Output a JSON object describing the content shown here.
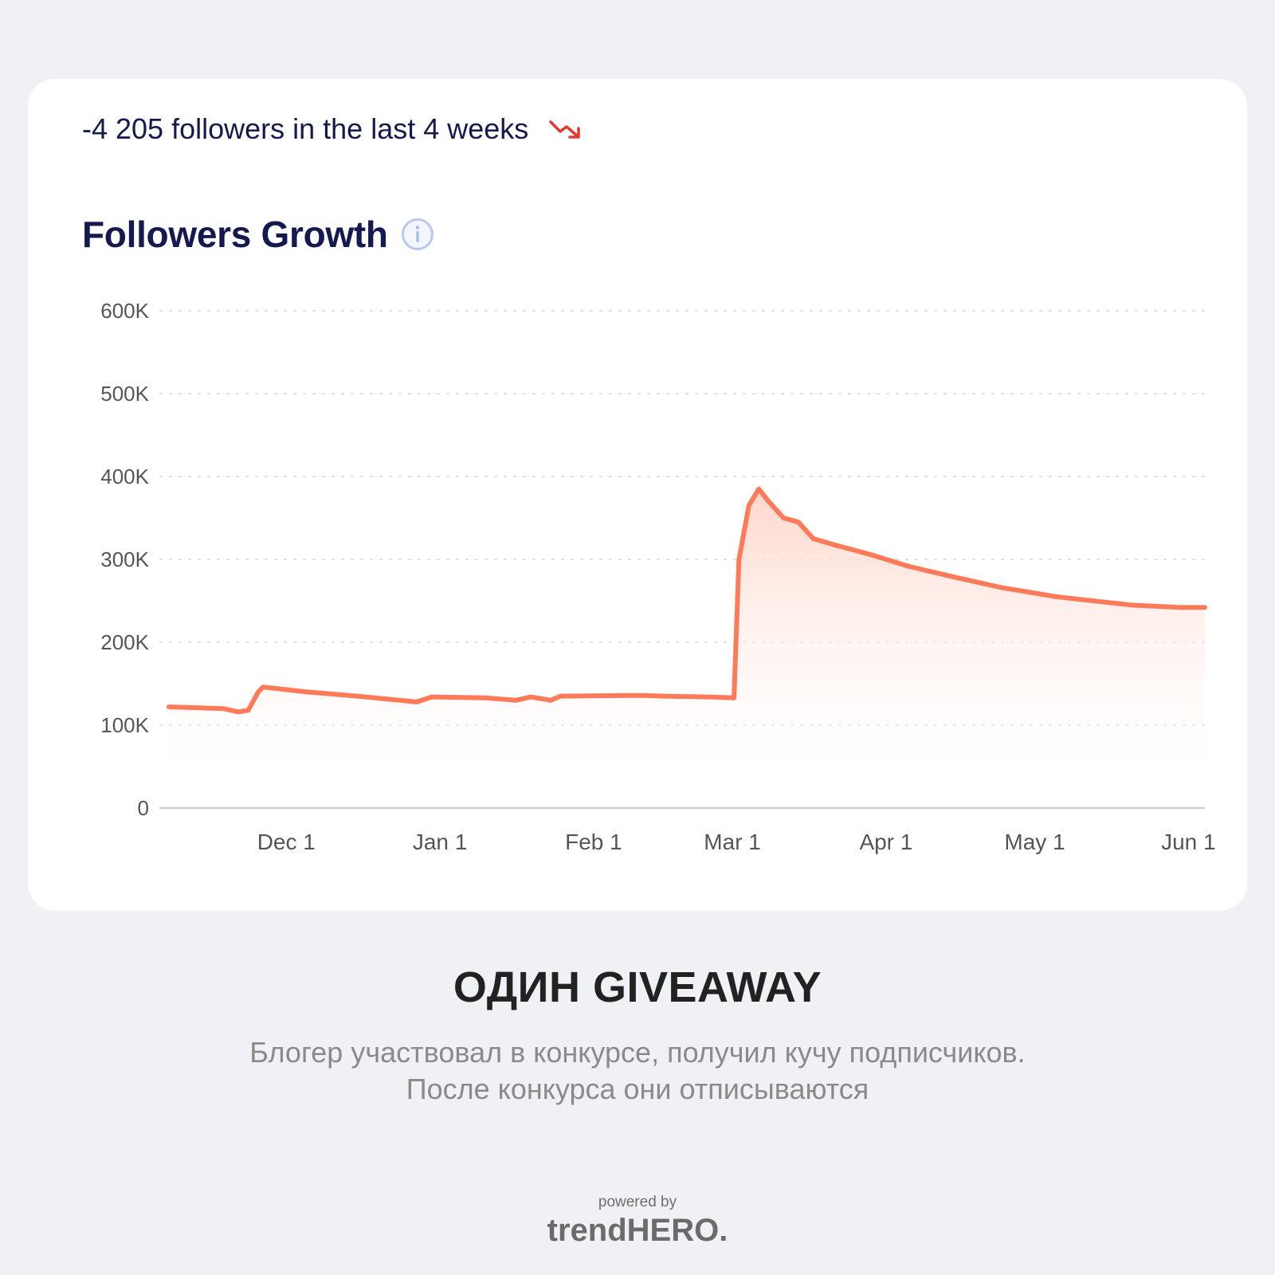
{
  "header": {
    "summary": "-4 205 followers in the last 4 weeks",
    "trend_icon": "trend-down-icon",
    "title": "Followers Growth",
    "info_icon": "info-icon"
  },
  "chart_data": {
    "type": "area",
    "title": "Followers Growth",
    "xlabel": "",
    "ylabel": "",
    "x_ticks": [
      "Dec 1",
      "Jan 1",
      "Feb 1",
      "Mar 1",
      "Apr 1",
      "May 1",
      "Jun 1"
    ],
    "y_ticks": [
      "0",
      "100K",
      "200K",
      "300K",
      "400K",
      "500K",
      "600K"
    ],
    "ylim": [
      0,
      600000
    ],
    "xlim": [
      "2020-11-07",
      "2021-06-04"
    ],
    "grid": true,
    "colors": {
      "line": "#ff7a59",
      "fill": "#ffcfc1"
    },
    "series": [
      {
        "x": [
          "2020-11-07",
          "2020-11-18",
          "2020-11-21",
          "2020-11-23",
          "2020-11-25",
          "2020-11-26",
          "2020-12-05",
          "2020-12-15",
          "2020-12-27",
          "2020-12-30",
          "2021-01-10",
          "2021-01-16",
          "2021-01-19",
          "2021-01-23",
          "2021-01-25",
          "2021-02-10",
          "2021-02-15",
          "2021-02-24",
          "2021-03-01",
          "2021-03-02",
          "2021-03-04",
          "2021-03-06",
          "2021-03-08",
          "2021-03-11",
          "2021-03-14",
          "2021-03-17",
          "2021-03-21",
          "2021-03-26",
          "2021-03-29",
          "2021-04-05",
          "2021-04-15",
          "2021-04-24",
          "2021-05-05",
          "2021-05-20",
          "2021-05-30",
          "2021-06-04"
        ],
        "y": [
          122000,
          120000,
          116000,
          118000,
          140000,
          146000,
          140000,
          135000,
          128000,
          134000,
          133000,
          130000,
          134000,
          130000,
          135000,
          136000,
          135000,
          134000,
          133000,
          300000,
          365000,
          385000,
          370000,
          350000,
          345000,
          325000,
          318000,
          310000,
          305000,
          292000,
          278000,
          266000,
          255000,
          245000,
          242000,
          242000
        ]
      }
    ]
  },
  "footer": {
    "title": "ОДИН GIVEAWAY",
    "description": "Блогер участвовал в конкурсе, получил кучу подписчиков. После конкурса они отписываются",
    "powered_by": "powered by",
    "brand": "trendHERO."
  }
}
